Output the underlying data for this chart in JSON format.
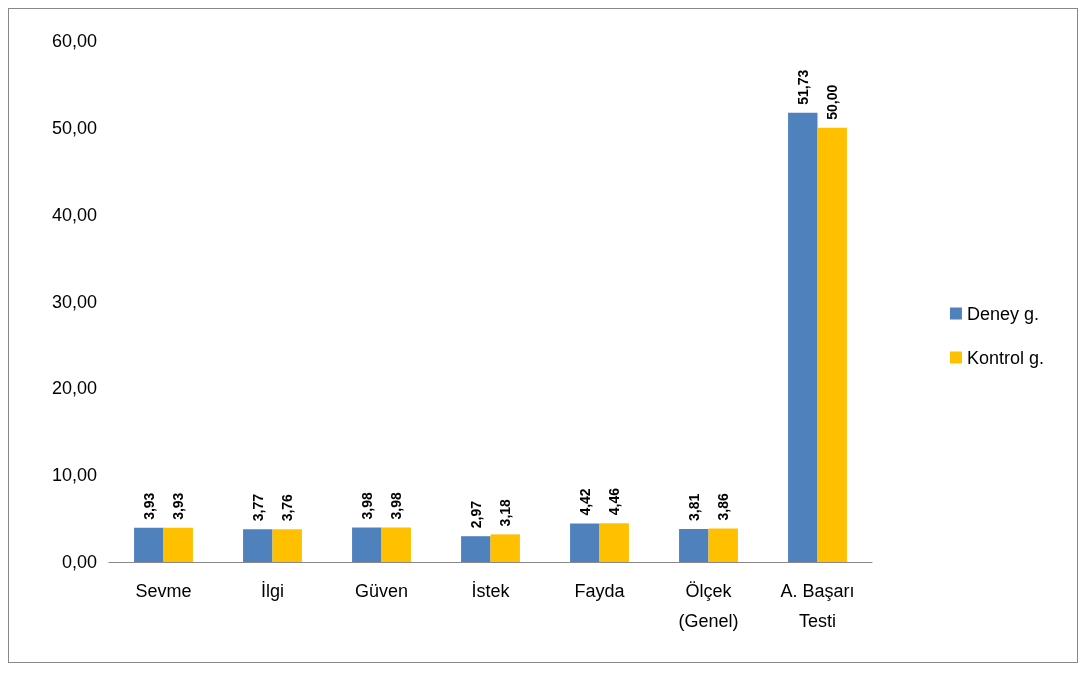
{
  "chart_data": {
    "type": "bar",
    "categories": [
      "Sevme",
      "İlgi",
      "Güven",
      "İstek",
      "Fayda",
      "Ölçek\n(Genel)",
      "A. Başarı\nTesti"
    ],
    "series": [
      {
        "name": "Deney g.",
        "color": "#4f81bd",
        "values": [
          3.93,
          3.77,
          3.98,
          2.97,
          4.42,
          3.81,
          51.73
        ],
        "value_labels": [
          "3,93",
          "3,77",
          "3,98",
          "2,97",
          "4,42",
          "3,81",
          "51,73"
        ]
      },
      {
        "name": "Kontrol g.",
        "color": "#ffc000",
        "values": [
          3.93,
          3.76,
          3.98,
          3.18,
          4.46,
          3.86,
          50.0
        ],
        "value_labels": [
          "3,93",
          "3,76",
          "3,98",
          "3,18",
          "4,46",
          "3,86",
          "50,00"
        ]
      }
    ],
    "ylim": [
      0,
      60
    ],
    "yticks": [
      {
        "value": 0,
        "label": "0,00"
      },
      {
        "value": 10,
        "label": "10,00"
      },
      {
        "value": 20,
        "label": "20,00"
      },
      {
        "value": 30,
        "label": "30,00"
      },
      {
        "value": 40,
        "label": "40,00"
      },
      {
        "value": 50,
        "label": "50,00"
      },
      {
        "value": 60,
        "label": "60,00"
      }
    ],
    "grid": false,
    "legend": "right"
  }
}
